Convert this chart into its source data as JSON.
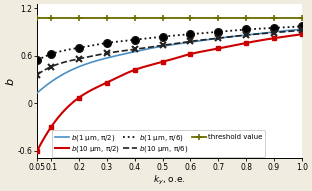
{
  "title": "",
  "xlabel": "$k_y$, о.е.",
  "ylabel": "$b$",
  "xlim": [
    0.05,
    1.0
  ],
  "ylim": [
    -0.7,
    1.25
  ],
  "xticks": [
    0.05,
    0.1,
    0.2,
    0.3,
    0.4,
    0.5,
    0.6,
    0.7,
    0.8,
    0.9,
    1.0
  ],
  "xtick_labels": [
    "0.05",
    "0.1",
    "0.2",
    "0.3",
    "0.4",
    "0.5",
    "0.6",
    "0.7",
    "0.8",
    "0.9",
    "1.0"
  ],
  "yticks": [
    -0.6,
    0.0,
    0.6,
    1.2
  ],
  "ytick_labels": [
    "-0.6",
    "0",
    "0.6",
    "1.2"
  ],
  "x_vals": [
    0.05,
    0.1,
    0.2,
    0.3,
    0.4,
    0.5,
    0.6,
    0.7,
    0.8,
    0.9,
    1.0
  ],
  "b1_pi2": [
    0.13,
    0.27,
    0.46,
    0.57,
    0.65,
    0.72,
    0.77,
    0.82,
    0.86,
    0.9,
    0.93
  ],
  "b10_pi2": [
    -0.6,
    -0.3,
    0.07,
    0.26,
    0.42,
    0.52,
    0.62,
    0.69,
    0.76,
    0.82,
    0.87
  ],
  "b1_pi6": [
    0.54,
    0.62,
    0.7,
    0.76,
    0.8,
    0.84,
    0.87,
    0.9,
    0.93,
    0.95,
    0.97
  ],
  "b10_pi6": [
    0.36,
    0.46,
    0.56,
    0.63,
    0.68,
    0.73,
    0.78,
    0.82,
    0.86,
    0.89,
    0.92
  ],
  "threshold": [
    1.08,
    1.08,
    1.08,
    1.08,
    1.08,
    1.08,
    1.08,
    1.08,
    1.08,
    1.08,
    1.08
  ],
  "color_b1_pi2": "#4a90c4",
  "color_b10_pi2": "#cc0000",
  "color_b1_pi6": "#111111",
  "color_b10_pi6": "#222222",
  "color_threshold": "#6b6b00",
  "bg_color": "#ffffff",
  "fig_bg_color": "#f0ece0",
  "legend_labels": [
    "$b$(1 μm, π/2)",
    "$b$(10 μm, π/2)",
    "$b$(1 μm, π/6)",
    "$b$(10 μm, π/6)",
    "threshold value"
  ]
}
